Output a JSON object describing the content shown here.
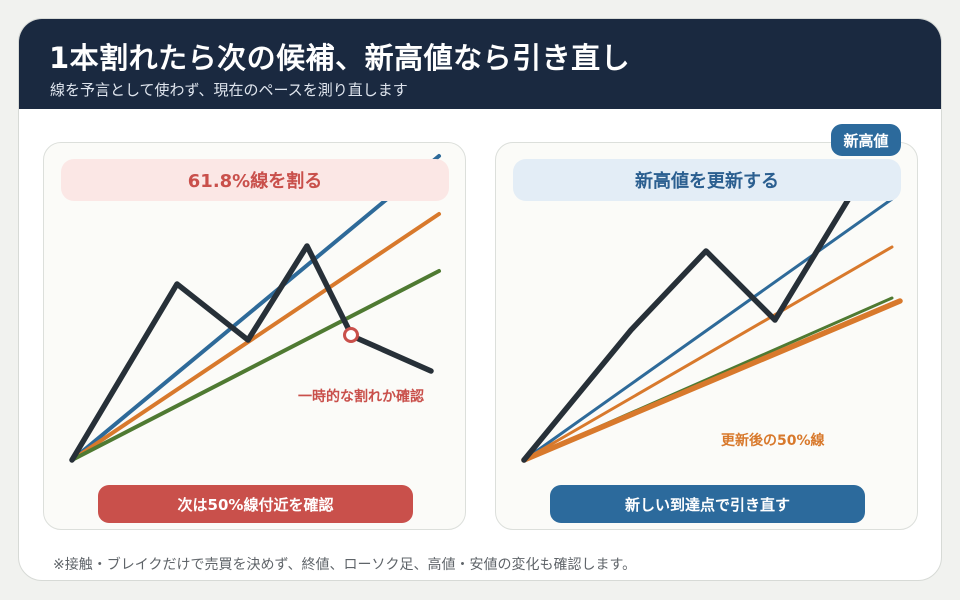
{
  "header": {
    "title": "1本割れたら次の候補、新高値なら引き直し",
    "subtitle": "線を予言として使わず、現在のペースを測り直します"
  },
  "left_panel": {
    "heading": "61.8%線を割る",
    "annotation": "一時的な割れか確認",
    "button_label": "次は50%線付近を確認"
  },
  "right_panel": {
    "heading": "新高値を更新する",
    "badge": "新高値",
    "annotation": "更新後の50%線",
    "button_label": "新しい到達点で引き直す"
  },
  "footnote": "※接触・ブレイクだけで売買を決めず、終値、ローソク足、高値・安値の変化も確認します。",
  "colors": {
    "header_bg": "#1a2940",
    "line_blue": "#2e6a99",
    "line_orange": "#d8792c",
    "line_green": "#4f7a32",
    "price_line": "#273038",
    "accent_red": "#c9504b",
    "accent_blue": "#2c6a9c"
  }
}
